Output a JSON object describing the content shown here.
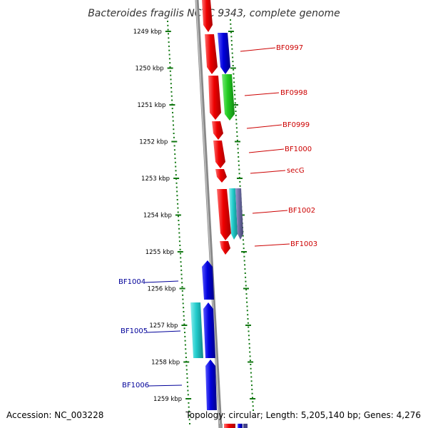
{
  "title": "Bacteroides fragilis NCTC 9343, complete genome",
  "footer": {
    "accession": "Accession: NC_003228",
    "topology": "Topology: circular; Length: 5,205,140 bp; Genes: 4,276"
  },
  "ruler": {
    "unit": "kbp",
    "ticks": [
      "1249 kbp",
      "1250 kbp",
      "1251 kbp",
      "1252 kbp",
      "1253 kbp",
      "1254 kbp",
      "1255 kbp",
      "1256 kbp",
      "1257 kbp",
      "1258 kbp",
      "1259 kbp"
    ]
  },
  "colors": {
    "forward_label": "#cc0000",
    "reverse_label": "#000099",
    "red_gene": "#ee0000",
    "blue_gene": "#0000dd",
    "green_gene": "#22cc22",
    "cyan_gene": "#22cccc",
    "ruler_dots": "#117711",
    "backbone": "#888888"
  },
  "genes": {
    "forward": [
      "BF0997",
      "BF0998",
      "BF0999",
      "BF1000",
      "secG",
      "BF1002",
      "BF1003"
    ],
    "reverse": [
      "BF1004",
      "BF1005",
      "BF1006"
    ]
  }
}
